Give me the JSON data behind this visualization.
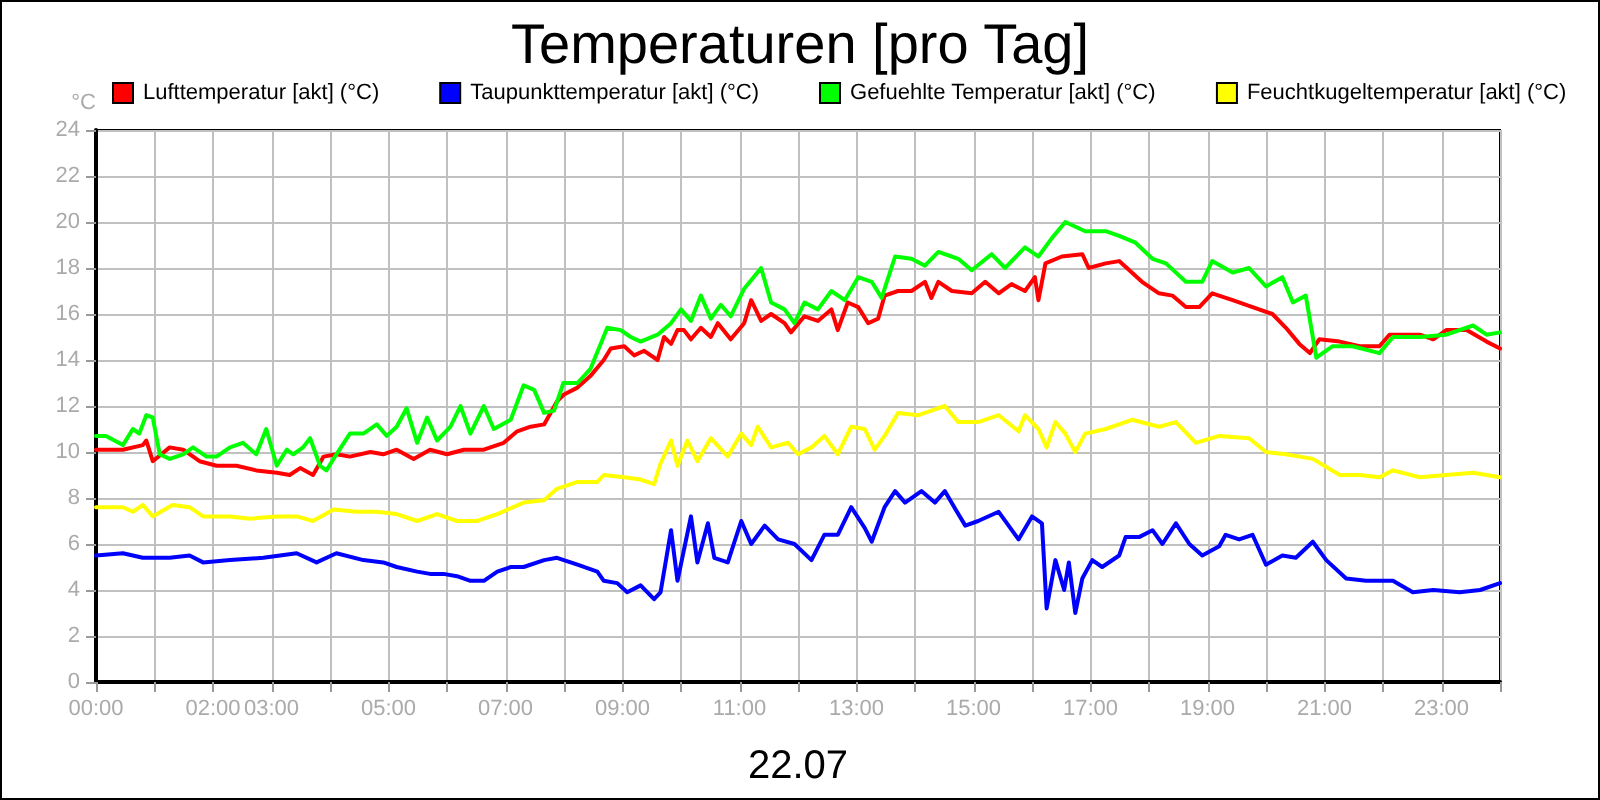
{
  "chart_data": {
    "type": "line",
    "title": "Temperaturen [pro Tag]",
    "xlabel": "22.07",
    "ylabel": "°C",
    "legend": "top",
    "grid": true,
    "line_style": "solid",
    "xlim": [
      0,
      24
    ],
    "ylim": [
      0,
      24
    ],
    "xticks": [
      {
        "value": 0,
        "label": "00:00"
      },
      {
        "value": 1,
        "label": null
      },
      {
        "value": 2,
        "label": "02:00"
      },
      {
        "value": 3,
        "label": "03:00"
      },
      {
        "value": 4,
        "label": null
      },
      {
        "value": 5,
        "label": "05:00"
      },
      {
        "value": 6,
        "label": null
      },
      {
        "value": 7,
        "label": "07:00"
      },
      {
        "value": 8,
        "label": null
      },
      {
        "value": 9,
        "label": "09:00"
      },
      {
        "value": 10,
        "label": null
      },
      {
        "value": 11,
        "label": "11:00"
      },
      {
        "value": 12,
        "label": null
      },
      {
        "value": 13,
        "label": "13:00"
      },
      {
        "value": 14,
        "label": null
      },
      {
        "value": 15,
        "label": "15:00"
      },
      {
        "value": 16,
        "label": null
      },
      {
        "value": 17,
        "label": "17:00"
      },
      {
        "value": 18,
        "label": null
      },
      {
        "value": 19,
        "label": "19:00"
      },
      {
        "value": 20,
        "label": null
      },
      {
        "value": 21,
        "label": "21:00"
      },
      {
        "value": 22,
        "label": null
      },
      {
        "value": 23,
        "label": "23:00"
      },
      {
        "value": 24,
        "label": null
      }
    ],
    "yticks": [
      0,
      2,
      4,
      6,
      8,
      10,
      12,
      14,
      16,
      18,
      20,
      22,
      24
    ],
    "series": [
      {
        "name": "Lufttemperatur [akt] (°C)",
        "color": "#ff0000",
        "x": [
          0,
          0.46,
          0.8,
          0.86,
          0.97,
          1.26,
          1.49,
          1.77,
          2.06,
          2.4,
          2.74,
          3.09,
          3.31,
          3.49,
          3.71,
          3.89,
          4.11,
          4.34,
          4.69,
          4.91,
          5.14,
          5.43,
          5.71,
          6.0,
          6.29,
          6.63,
          6.97,
          7.2,
          7.43,
          7.66,
          7.88,
          8.0,
          8.23,
          8.45,
          8.68,
          8.8,
          9.03,
          9.2,
          9.37,
          9.6,
          9.71,
          9.83,
          9.94,
          10.05,
          10.17,
          10.34,
          10.51,
          10.63,
          10.85,
          11.08,
          11.2,
          11.37,
          11.54,
          11.77,
          11.88,
          12.11,
          12.34,
          12.57,
          12.68,
          12.85,
          13.03,
          13.2,
          13.37,
          13.48,
          13.71,
          13.94,
          14.17,
          14.28,
          14.4,
          14.63,
          14.97,
          15.2,
          15.43,
          15.65,
          15.88,
          16.05,
          16.11,
          16.23,
          16.51,
          16.86,
          16.97,
          17.26,
          17.49,
          17.88,
          18.17,
          18.4,
          18.63,
          18.86,
          19.08,
          19.43,
          19.77,
          20.11,
          20.34,
          20.57,
          20.75,
          20.91,
          21.26,
          21.6,
          21.94,
          22.11,
          22.63,
          22.86,
          23.08,
          23.43,
          23.77,
          24
        ],
        "values": [
          10.1,
          10.1,
          10.3,
          10.5,
          9.6,
          10.2,
          10.1,
          9.6,
          9.4,
          9.4,
          9.2,
          9.1,
          9.0,
          9.3,
          9.0,
          9.8,
          9.9,
          9.8,
          10.0,
          9.9,
          10.1,
          9.7,
          10.1,
          9.9,
          10.1,
          10.1,
          10.4,
          10.9,
          11.1,
          11.2,
          12.2,
          12.5,
          12.8,
          13.3,
          14.0,
          14.5,
          14.6,
          14.2,
          14.4,
          14.0,
          15.0,
          14.7,
          15.3,
          15.3,
          14.9,
          15.4,
          15.0,
          15.6,
          14.9,
          15.6,
          16.6,
          15.7,
          16.0,
          15.6,
          15.2,
          15.9,
          15.7,
          16.2,
          15.3,
          16.5,
          16.3,
          15.6,
          15.8,
          16.8,
          17.0,
          17.0,
          17.4,
          16.7,
          17.4,
          17.0,
          16.9,
          17.4,
          16.9,
          17.3,
          17.0,
          17.6,
          16.6,
          18.2,
          18.5,
          18.6,
          18.0,
          18.2,
          18.3,
          17.4,
          16.9,
          16.8,
          16.3,
          16.3,
          16.9,
          16.6,
          16.3,
          16.0,
          15.4,
          14.7,
          14.3,
          14.9,
          14.8,
          14.6,
          14.6,
          15.1,
          15.1,
          14.9,
          15.3,
          15.3,
          14.8,
          14.5
        ]
      },
      {
        "name": "Taupunkttemperatur [akt] (°C)",
        "color": "#0000ff",
        "x": [
          0,
          0.46,
          0.8,
          1.26,
          1.6,
          1.83,
          2.29,
          2.86,
          3.43,
          3.77,
          4.11,
          4.57,
          4.91,
          5.14,
          5.49,
          5.71,
          5.94,
          6.17,
          6.4,
          6.63,
          6.86,
          7.09,
          7.31,
          7.66,
          7.88,
          8.23,
          8.57,
          8.68,
          8.91,
          9.08,
          9.31,
          9.54,
          9.65,
          9.83,
          9.94,
          10.17,
          10.28,
          10.46,
          10.57,
          10.8,
          11.03,
          11.2,
          11.43,
          11.66,
          11.94,
          12.23,
          12.45,
          12.68,
          12.91,
          13.14,
          13.26,
          13.48,
          13.66,
          13.83,
          14.11,
          14.34,
          14.51,
          14.74,
          14.86,
          15.08,
          15.43,
          15.77,
          16.0,
          16.17,
          16.25,
          16.4,
          16.55,
          16.63,
          16.74,
          16.86,
          17.03,
          17.2,
          17.49,
          17.6,
          17.83,
          18.06,
          18.23,
          18.46,
          18.69,
          18.91,
          19.2,
          19.31,
          19.54,
          19.77,
          20.0,
          20.28,
          20.51,
          20.8,
          21.03,
          21.37,
          21.71,
          22.17,
          22.51,
          22.86,
          23.31,
          23.66,
          24
        ],
        "values": [
          5.5,
          5.6,
          5.4,
          5.4,
          5.5,
          5.2,
          5.3,
          5.4,
          5.6,
          5.2,
          5.6,
          5.3,
          5.2,
          5.0,
          4.8,
          4.7,
          4.7,
          4.6,
          4.4,
          4.4,
          4.8,
          5.0,
          5.0,
          5.3,
          5.4,
          5.1,
          4.8,
          4.4,
          4.3,
          3.9,
          4.2,
          3.6,
          3.9,
          6.6,
          4.4,
          7.2,
          5.2,
          6.9,
          5.4,
          5.2,
          7.0,
          6.0,
          6.8,
          6.2,
          6.0,
          5.3,
          6.4,
          6.4,
          7.6,
          6.7,
          6.1,
          7.6,
          8.3,
          7.8,
          8.3,
          7.8,
          8.3,
          7.3,
          6.8,
          7.0,
          7.4,
          6.2,
          7.2,
          6.9,
          3.2,
          5.3,
          4.0,
          5.2,
          3.0,
          4.5,
          5.3,
          5.0,
          5.5,
          6.3,
          6.3,
          6.6,
          6.0,
          6.9,
          6.0,
          5.5,
          5.9,
          6.4,
          6.2,
          6.4,
          5.1,
          5.5,
          5.4,
          6.1,
          5.3,
          4.5,
          4.4,
          4.4,
          3.9,
          4.0,
          3.9,
          4.0,
          4.3
        ]
      },
      {
        "name": "Gefuehlte Temperatur [akt] (°C)",
        "color": "#00ff00",
        "x": [
          0,
          0.17,
          0.46,
          0.63,
          0.74,
          0.86,
          0.97,
          1.09,
          1.26,
          1.49,
          1.66,
          1.89,
          2.06,
          2.29,
          2.51,
          2.74,
          2.91,
          3.09,
          3.26,
          3.37,
          3.54,
          3.66,
          3.83,
          3.94,
          4.11,
          4.34,
          4.57,
          4.8,
          4.97,
          5.14,
          5.31,
          5.49,
          5.66,
          5.83,
          6.06,
          6.23,
          6.4,
          6.63,
          6.8,
          7.09,
          7.31,
          7.49,
          7.66,
          7.83,
          7.99,
          8.23,
          8.45,
          8.74,
          8.97,
          9.14,
          9.31,
          9.6,
          9.83,
          10.0,
          10.17,
          10.34,
          10.51,
          10.68,
          10.85,
          11.08,
          11.37,
          11.54,
          11.77,
          11.94,
          12.11,
          12.34,
          12.57,
          12.8,
          13.03,
          13.26,
          13.43,
          13.66,
          13.94,
          14.17,
          14.4,
          14.74,
          14.97,
          15.31,
          15.54,
          15.88,
          16.05,
          16.11,
          16.34,
          16.57,
          16.91,
          17.26,
          17.49,
          17.77,
          18.06,
          18.29,
          18.63,
          18.91,
          19.08,
          19.43,
          19.71,
          20.0,
          20.28,
          20.46,
          20.68,
          20.86,
          21.14,
          21.48,
          21.94,
          22.17,
          22.63,
          23.08,
          23.54,
          23.77,
          24
        ],
        "values": [
          10.7,
          10.7,
          10.3,
          11.0,
          10.8,
          11.6,
          11.5,
          9.9,
          9.7,
          9.9,
          10.2,
          9.8,
          9.8,
          10.2,
          10.4,
          9.9,
          11.0,
          9.4,
          10.1,
          9.9,
          10.2,
          10.6,
          9.4,
          9.2,
          9.9,
          10.8,
          10.8,
          11.2,
          10.7,
          11.1,
          11.9,
          10.4,
          11.5,
          10.5,
          11.1,
          12.0,
          10.8,
          12.0,
          11.0,
          11.4,
          12.9,
          12.7,
          11.7,
          11.8,
          13.0,
          13.0,
          13.6,
          15.4,
          15.3,
          15.0,
          14.8,
          15.1,
          15.6,
          16.2,
          15.7,
          16.8,
          15.8,
          16.4,
          15.9,
          17.1,
          18.0,
          16.5,
          16.2,
          15.6,
          16.5,
          16.2,
          17.0,
          16.6,
          17.6,
          17.4,
          16.7,
          18.5,
          18.4,
          18.1,
          18.7,
          18.4,
          17.9,
          18.6,
          18.0,
          18.9,
          18.6,
          18.5,
          19.3,
          20.0,
          19.6,
          19.6,
          19.4,
          19.1,
          18.4,
          18.2,
          17.4,
          17.4,
          18.3,
          17.8,
          18.0,
          17.2,
          17.6,
          16.5,
          16.8,
          14.1,
          14.6,
          14.6,
          14.3,
          15.0,
          15.0,
          15.1,
          15.5,
          15.1,
          15.2
        ]
      },
      {
        "name": "Feuchtkugeltemperatur [akt] (°C)",
        "color": "#ffff00",
        "x": [
          0,
          0.46,
          0.63,
          0.8,
          0.97,
          1.31,
          1.6,
          1.83,
          2.29,
          2.63,
          3.09,
          3.43,
          3.71,
          4.06,
          4.46,
          4.8,
          5.14,
          5.49,
          5.83,
          6.17,
          6.51,
          6.86,
          7.31,
          7.66,
          7.88,
          8.23,
          8.57,
          8.68,
          9.03,
          9.31,
          9.54,
          9.65,
          9.83,
          9.94,
          10.11,
          10.28,
          10.51,
          10.8,
          11.03,
          11.2,
          11.31,
          11.54,
          11.83,
          12.0,
          12.23,
          12.45,
          12.68,
          12.91,
          13.14,
          13.31,
          13.48,
          13.71,
          14.06,
          14.28,
          14.51,
          14.74,
          15.08,
          15.43,
          15.77,
          15.88,
          16.11,
          16.25,
          16.4,
          16.57,
          16.74,
          16.91,
          17.26,
          17.71,
          18.17,
          18.46,
          18.8,
          19.2,
          19.71,
          20.0,
          20.34,
          20.8,
          21.26,
          21.6,
          21.94,
          22.17,
          22.63,
          23.08,
          23.54,
          24
        ],
        "values": [
          7.6,
          7.6,
          7.4,
          7.7,
          7.2,
          7.7,
          7.6,
          7.2,
          7.2,
          7.1,
          7.2,
          7.2,
          7.0,
          7.5,
          7.4,
          7.4,
          7.3,
          7.0,
          7.3,
          7.0,
          7.0,
          7.3,
          7.8,
          7.9,
          8.4,
          8.7,
          8.7,
          9.0,
          8.9,
          8.8,
          8.6,
          9.5,
          10.5,
          9.4,
          10.5,
          9.6,
          10.6,
          9.8,
          10.8,
          10.3,
          11.1,
          10.2,
          10.4,
          9.9,
          10.2,
          10.7,
          9.9,
          11.1,
          11.0,
          10.1,
          10.7,
          11.7,
          11.6,
          11.8,
          12.0,
          11.3,
          11.3,
          11.6,
          10.9,
          11.6,
          11.0,
          10.2,
          11.3,
          10.8,
          10.0,
          10.8,
          11.0,
          11.4,
          11.1,
          11.3,
          10.4,
          10.7,
          10.6,
          10.0,
          9.9,
          9.7,
          9.0,
          9.0,
          8.9,
          9.2,
          8.9,
          9.0,
          9.1,
          8.9
        ]
      }
    ]
  }
}
